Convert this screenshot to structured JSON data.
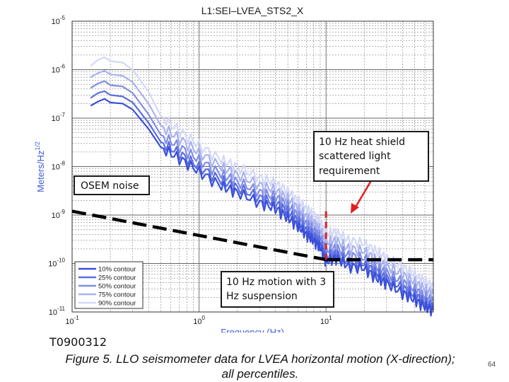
{
  "chart_data": {
    "type": "line",
    "title": "L1:SEI–LVEA_STS2_X",
    "xlabel": "Frequency (Hz)",
    "ylabel": "Meters/Hz",
    "ylabel_sup": "1/2",
    "x_scale": "log",
    "y_scale": "log",
    "xlim": [
      0.1,
      70
    ],
    "ylim": [
      1e-11,
      1e-05
    ],
    "x_ticks": [
      {
        "base": "10",
        "exp": "-1",
        "value": 0.1
      },
      {
        "base": "10",
        "exp": "0",
        "value": 1
      },
      {
        "base": "10",
        "exp": "1",
        "value": 10
      }
    ],
    "y_ticks": [
      {
        "base": "10",
        "exp": "-5",
        "value": 1e-05
      },
      {
        "base": "10",
        "exp": "-6",
        "value": 1e-06
      },
      {
        "base": "10",
        "exp": "-7",
        "value": 1e-07
      },
      {
        "base": "10",
        "exp": "-8",
        "value": 1e-08
      },
      {
        "base": "10",
        "exp": "-9",
        "value": 1e-09
      },
      {
        "base": "10",
        "exp": "-10",
        "value": 1e-10
      },
      {
        "base": "10",
        "exp": "-11",
        "value": 1e-11
      }
    ],
    "grid": true,
    "legend_position": "bottom-left",
    "series": [
      {
        "name": "10% contour",
        "color": "#3a4fd9",
        "x": [
          0.14,
          0.16,
          0.18,
          0.2,
          0.25,
          0.3,
          0.4,
          0.5,
          0.7,
          1,
          1.5,
          2,
          3,
          4,
          5,
          6,
          7,
          8,
          9,
          10,
          12,
          15,
          20,
          25,
          30,
          40,
          50,
          60,
          70
        ],
        "y": [
          1.8e-07,
          2.2e-07,
          2.5e-07,
          2.1e-07,
          2e-07,
          1.5e-07,
          6e-08,
          2.5e-08,
          1.5e-08,
          8e-09,
          4e-09,
          3e-09,
          1.8e-09,
          1.4e-09,
          9e-10,
          6e-10,
          4e-10,
          3e-10,
          2.2e-10,
          1.1e-10,
          1.3e-10,
          9e-11,
          8e-11,
          5e-11,
          4e-11,
          2.5e-11,
          1.8e-11,
          1.3e-11,
          1.1e-11
        ]
      },
      {
        "name": "25% contour",
        "color": "#5a6de0",
        "x": [
          0.14,
          0.16,
          0.18,
          0.2,
          0.25,
          0.3,
          0.4,
          0.5,
          0.7,
          1,
          1.5,
          2,
          3,
          4,
          5,
          6,
          7,
          8,
          9,
          10,
          12,
          15,
          20,
          25,
          30,
          40,
          50,
          60,
          70
        ],
        "y": [
          2.6e-07,
          3.3e-07,
          3.6e-07,
          3e-07,
          2.8e-07,
          2.1e-07,
          8e-08,
          3.2e-08,
          1.9e-08,
          1e-08,
          5.2e-09,
          3.8e-09,
          2.3e-09,
          1.8e-09,
          1.2e-09,
          7.5e-10,
          5e-10,
          3.8e-10,
          2.8e-10,
          1.4e-10,
          1.6e-10,
          1.1e-10,
          1e-10,
          6.5e-11,
          5e-11,
          3.2e-11,
          2.3e-11,
          1.6e-11,
          1.3e-11
        ]
      },
      {
        "name": "50% contour",
        "color": "#7f8de6",
        "x": [
          0.14,
          0.16,
          0.18,
          0.2,
          0.25,
          0.3,
          0.4,
          0.5,
          0.7,
          1,
          1.5,
          2,
          3,
          4,
          5,
          6,
          7,
          8,
          9,
          10,
          12,
          15,
          20,
          25,
          30,
          40,
          50,
          60,
          70
        ],
        "y": [
          4.2e-07,
          5.2e-07,
          5.8e-07,
          4.8e-07,
          4.5e-07,
          3.3e-07,
          1.2e-07,
          4.5e-08,
          2.6e-08,
          1.4e-08,
          7e-09,
          5e-09,
          3e-09,
          2.4e-09,
          1.6e-09,
          1e-09,
          6.8e-10,
          5e-10,
          3.6e-10,
          1.9e-10,
          2.1e-10,
          1.5e-10,
          1.3e-10,
          8.5e-11,
          6.5e-11,
          4.2e-11,
          3e-11,
          2.1e-11,
          1.7e-11
        ]
      },
      {
        "name": "75% contour",
        "color": "#a9b2ee",
        "x": [
          0.14,
          0.16,
          0.18,
          0.2,
          0.25,
          0.3,
          0.4,
          0.5,
          0.7,
          1,
          1.5,
          2,
          3,
          4,
          5,
          6,
          7,
          8,
          9,
          10,
          12,
          15,
          20,
          25,
          30,
          40,
          50,
          60,
          70
        ],
        "y": [
          7e-07,
          8.5e-07,
          9.5e-07,
          8e-07,
          7.5e-07,
          5.5e-07,
          2e-07,
          7e-08,
          3.8e-08,
          2e-08,
          1e-08,
          7e-09,
          4.2e-09,
          3.3e-09,
          2.2e-09,
          1.4e-09,
          9.5e-10,
          7e-10,
          5e-10,
          2.8e-10,
          3e-10,
          2.1e-10,
          1.8e-10,
          1.2e-10,
          9e-11,
          6e-11,
          4.2e-11,
          3e-11,
          2.4e-11
        ]
      },
      {
        "name": "90% contour",
        "color": "#d3d8f6",
        "x": [
          0.14,
          0.16,
          0.18,
          0.2,
          0.25,
          0.3,
          0.4,
          0.5,
          0.7,
          1,
          1.5,
          2,
          3,
          4,
          5,
          6,
          7,
          8,
          9,
          10,
          12,
          15,
          20,
          25,
          30,
          40,
          50,
          60,
          70
        ],
        "y": [
          1.2e-06,
          1.6e-06,
          1.8e-06,
          1.5e-06,
          1.4e-06,
          1e-06,
          3.5e-07,
          1.1e-07,
          5.5e-08,
          2.8e-08,
          1.4e-08,
          1e-08,
          6e-09,
          4.6e-09,
          3.1e-09,
          2e-09,
          1.4e-09,
          1e-09,
          7.5e-10,
          4.2e-10,
          4.5e-10,
          3.1e-10,
          2.6e-10,
          1.8e-10,
          1.3e-10,
          8.5e-11,
          6e-11,
          4.3e-11,
          3.4e-11
        ]
      }
    ],
    "reference_lines": [
      {
        "name": "OSEM noise",
        "style": "dashed",
        "color": "#000000",
        "x": [
          0.1,
          10
        ],
        "y": [
          1.2e-09,
          1.2e-10
        ]
      },
      {
        "name": "heat shield requirement",
        "style": "dashed",
        "color": "#000000",
        "x": [
          10,
          70
        ],
        "y": [
          1.2e-10,
          1.2e-10
        ]
      },
      {
        "name": "10 Hz cutoff",
        "style": "dashed",
        "color": "#e02020",
        "x": [
          10,
          10
        ],
        "y": [
          1.2e-09,
          1.2e-10
        ]
      }
    ],
    "annotations": [
      {
        "id": "osem",
        "text": "OSEM noise"
      },
      {
        "id": "heat",
        "lines": [
          "10 Hz heat shield",
          "scattered light",
          "requirement"
        ]
      },
      {
        "id": "motion",
        "lines": [
          "10 Hz motion with 3",
          "Hz suspension"
        ]
      }
    ]
  },
  "slide": {
    "doc_id": "T0900312",
    "caption_lines": [
      "Figure 5. LLO seismometer data for LVEA horizontal motion (X-direction);",
      "all percentiles."
    ],
    "page_number": "64"
  },
  "colors": {
    "arrow": "#e02020",
    "axis": "#333333",
    "grid": "#666666",
    "tick_label": "#1a1a1a",
    "axis_label": "#3f5bd6"
  }
}
